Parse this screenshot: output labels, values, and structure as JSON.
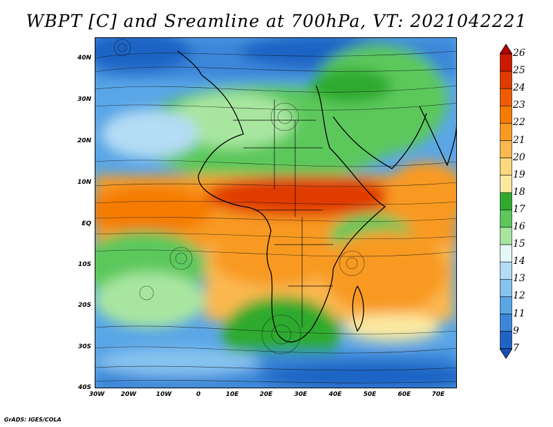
{
  "title": "WBPT [C] and Sreamline at 700hPa, VT: 2021042221",
  "axes": {
    "lat_labels": [
      "40N",
      "30N",
      "20N",
      "10N",
      "EQ",
      "10S",
      "20S",
      "30S",
      "40S"
    ],
    "lon_labels": [
      "30W",
      "20W",
      "10W",
      "0",
      "10E",
      "20E",
      "30E",
      "40E",
      "50E",
      "60E",
      "70E"
    ]
  },
  "colorbar": {
    "labels": [
      "26",
      "25",
      "24",
      "23",
      "22",
      "21",
      "20",
      "19",
      "18",
      "17",
      "16",
      "15",
      "14",
      "13",
      "12",
      "11",
      "9",
      "7"
    ],
    "colors": [
      "#b40000",
      "#cc1a00",
      "#e03a00",
      "#f05a00",
      "#f57c00",
      "#f89a20",
      "#fbb850",
      "#fdd77e",
      "#fbe9a0",
      "#2faa2f",
      "#5cc85c",
      "#a8e6a0",
      "#e6f7f7",
      "#b4dcf5",
      "#86c3ef",
      "#5aa6e6",
      "#3b86d8",
      "#1f63c4",
      "#1a4fb0"
    ]
  },
  "credit": "GrADS: IGES/COLA"
}
